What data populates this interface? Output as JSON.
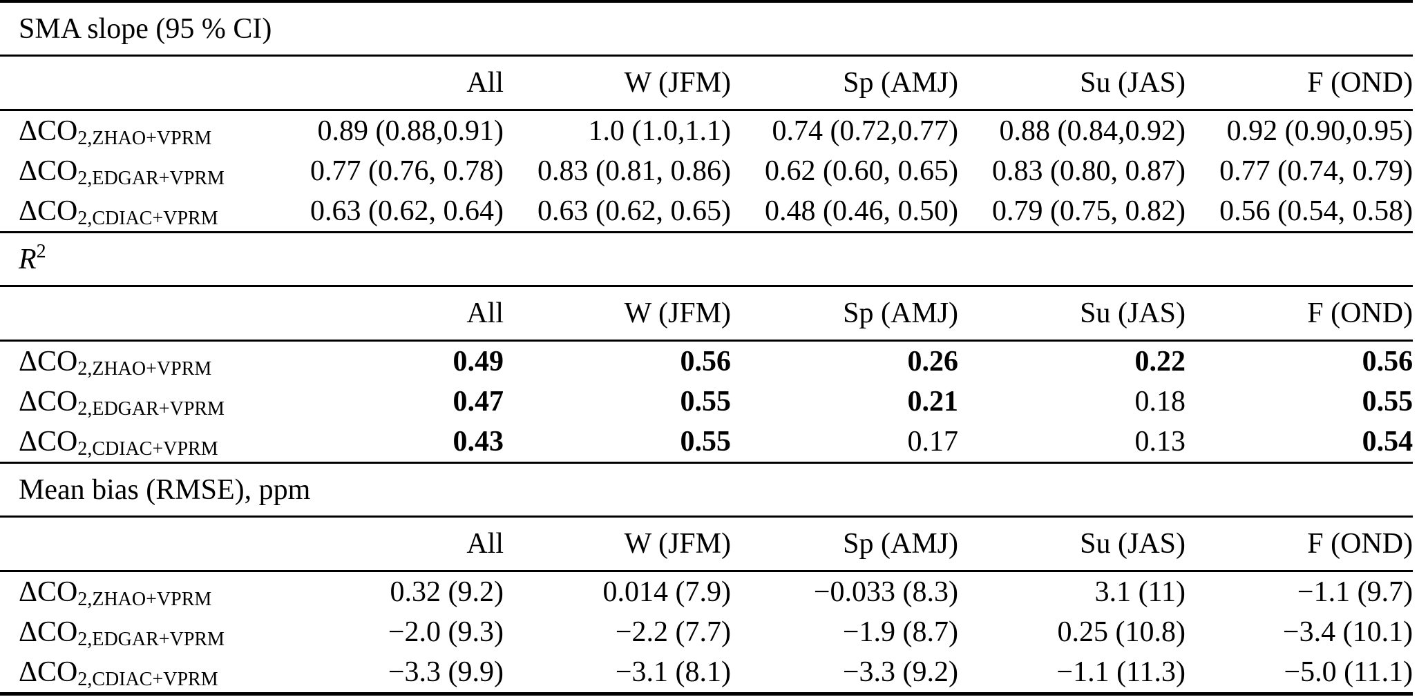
{
  "colors": {
    "background": "#ffffff",
    "text": "#000000",
    "rule": "#000000"
  },
  "sections": [
    {
      "title": "SMA slope (95 % CI)",
      "columns": [
        "All",
        "W (JFM)",
        "Sp (AMJ)",
        "Su (JAS)",
        "F (OND)"
      ],
      "rows": [
        {
          "label_prefix": "ΔCO",
          "label_sub": "2,ZHAO+VPRM",
          "values": [
            "0.89 (0.88,0.91)",
            "1.0 (1.0,1.1)",
            "0.74 (0.72,0.77)",
            "0.88 (0.84,0.92)",
            "0.92 (0.90,0.95)"
          ],
          "weights": [
            "normal",
            "normal",
            "normal",
            "normal",
            "normal"
          ]
        },
        {
          "label_prefix": "ΔCO",
          "label_sub": "2,EDGAR+VPRM",
          "values": [
            "0.77 (0.76, 0.78)",
            "0.83 (0.81, 0.86)",
            "0.62 (0.60, 0.65)",
            "0.83 (0.80, 0.87)",
            "0.77 (0.74, 0.79)"
          ],
          "weights": [
            "normal",
            "normal",
            "normal",
            "normal",
            "normal"
          ]
        },
        {
          "label_prefix": "ΔCO",
          "label_sub": "2,CDIAC+VPRM",
          "values": [
            "0.63 (0.62, 0.64)",
            "0.63 (0.62, 0.65)",
            "0.48 (0.46, 0.50)",
            "0.79 (0.75, 0.82)",
            "0.56 (0.54, 0.58)"
          ],
          "weights": [
            "normal",
            "normal",
            "normal",
            "normal",
            "normal"
          ]
        }
      ]
    },
    {
      "title_main": "R",
      "title_sup": "2",
      "columns": [
        "All",
        "W (JFM)",
        "Sp (AMJ)",
        "Su (JAS)",
        "F (OND)"
      ],
      "rows": [
        {
          "label_prefix": "ΔCO",
          "label_sub": "2,ZHAO+VPRM",
          "values": [
            "0.49",
            "0.56",
            "0.26",
            "0.22",
            "0.56"
          ],
          "weights": [
            "bold",
            "bold",
            "bold",
            "bold",
            "bold"
          ]
        },
        {
          "label_prefix": "ΔCO",
          "label_sub": "2,EDGAR+VPRM",
          "values": [
            "0.47",
            "0.55",
            "0.21",
            "0.18",
            "0.55"
          ],
          "weights": [
            "bold",
            "bold",
            "bold",
            "normal",
            "bold"
          ]
        },
        {
          "label_prefix": "ΔCO",
          "label_sub": "2,CDIAC+VPRM",
          "values": [
            "0.43",
            "0.55",
            "0.17",
            "0.13",
            "0.54"
          ],
          "weights": [
            "bold",
            "bold",
            "normal",
            "normal",
            "bold"
          ]
        }
      ]
    },
    {
      "title": "Mean bias (RMSE), ppm",
      "columns": [
        "All",
        "W (JFM)",
        "Sp (AMJ)",
        "Su (JAS)",
        "F (OND)"
      ],
      "rows": [
        {
          "label_prefix": "ΔCO",
          "label_sub": "2,ZHAO+VPRM",
          "values": [
            "0.32 (9.2)",
            "0.014 (7.9)",
            "−0.033 (8.3)",
            "3.1 (11)",
            "−1.1 (9.7)"
          ],
          "weights": [
            "normal",
            "normal",
            "normal",
            "normal",
            "normal"
          ]
        },
        {
          "label_prefix": "ΔCO",
          "label_sub": "2,EDGAR+VPRM",
          "values": [
            "−2.0 (9.3)",
            "−2.2 (7.7)",
            "−1.9 (8.7)",
            "0.25 (10.8)",
            "−3.4 (10.1)"
          ],
          "weights": [
            "normal",
            "normal",
            "normal",
            "normal",
            "normal"
          ]
        },
        {
          "label_prefix": "ΔCO",
          "label_sub": "2,CDIAC+VPRM",
          "values": [
            "−3.3 (9.9)",
            "−3.1 (8.1)",
            "−3.3 (9.2)",
            "−1.1 (11.3)",
            "−5.0 (11.1)"
          ],
          "weights": [
            "normal",
            "normal",
            "normal",
            "normal",
            "normal"
          ]
        }
      ]
    }
  ]
}
